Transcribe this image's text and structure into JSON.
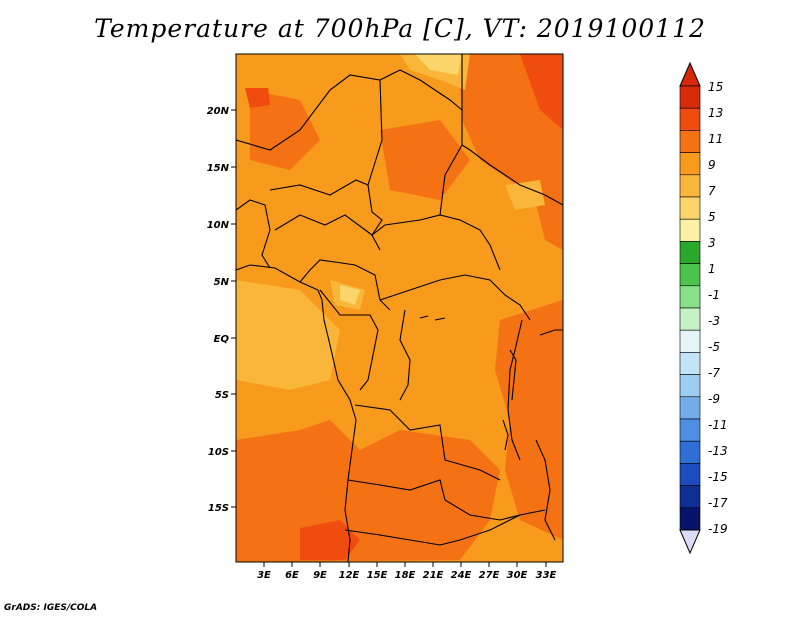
{
  "title": "Temperature at 700hPa [C], VT: 2019100112",
  "credit": "GrADS: IGES/COLA",
  "map": {
    "lat_labels": [
      "20N",
      "15N",
      "10N",
      "5N",
      "EQ",
      "5S",
      "10S",
      "15S"
    ],
    "lon_labels": [
      "3E",
      "6E",
      "9E",
      "12E",
      "15E",
      "18E",
      "21E",
      "24E",
      "27E",
      "30E",
      "33E"
    ]
  },
  "colorbar": {
    "labels": [
      "15",
      "13",
      "11",
      "9",
      "7",
      "5",
      "3",
      "1",
      "-1",
      "-3",
      "-5",
      "-7",
      "-9",
      "-11",
      "-13",
      "-15",
      "-17",
      "-19"
    ],
    "colors": [
      "#d62a0a",
      "#f04c10",
      "#f47214",
      "#f89a1c",
      "#fab63a",
      "#fbd56a",
      "#fbf0a4",
      "#2aa82a",
      "#4cc44c",
      "#88e088",
      "#c4f2c4",
      "#e4f4f8",
      "#c2e4f6",
      "#9ccdf2",
      "#74aeea",
      "#4e8ee2",
      "#2e6ed6",
      "#1d4cc2",
      "#0f2e96",
      "#07126a"
    ],
    "max_triangle_color": "#d62a0a",
    "min_triangle_color": "#dcdcf8"
  }
}
